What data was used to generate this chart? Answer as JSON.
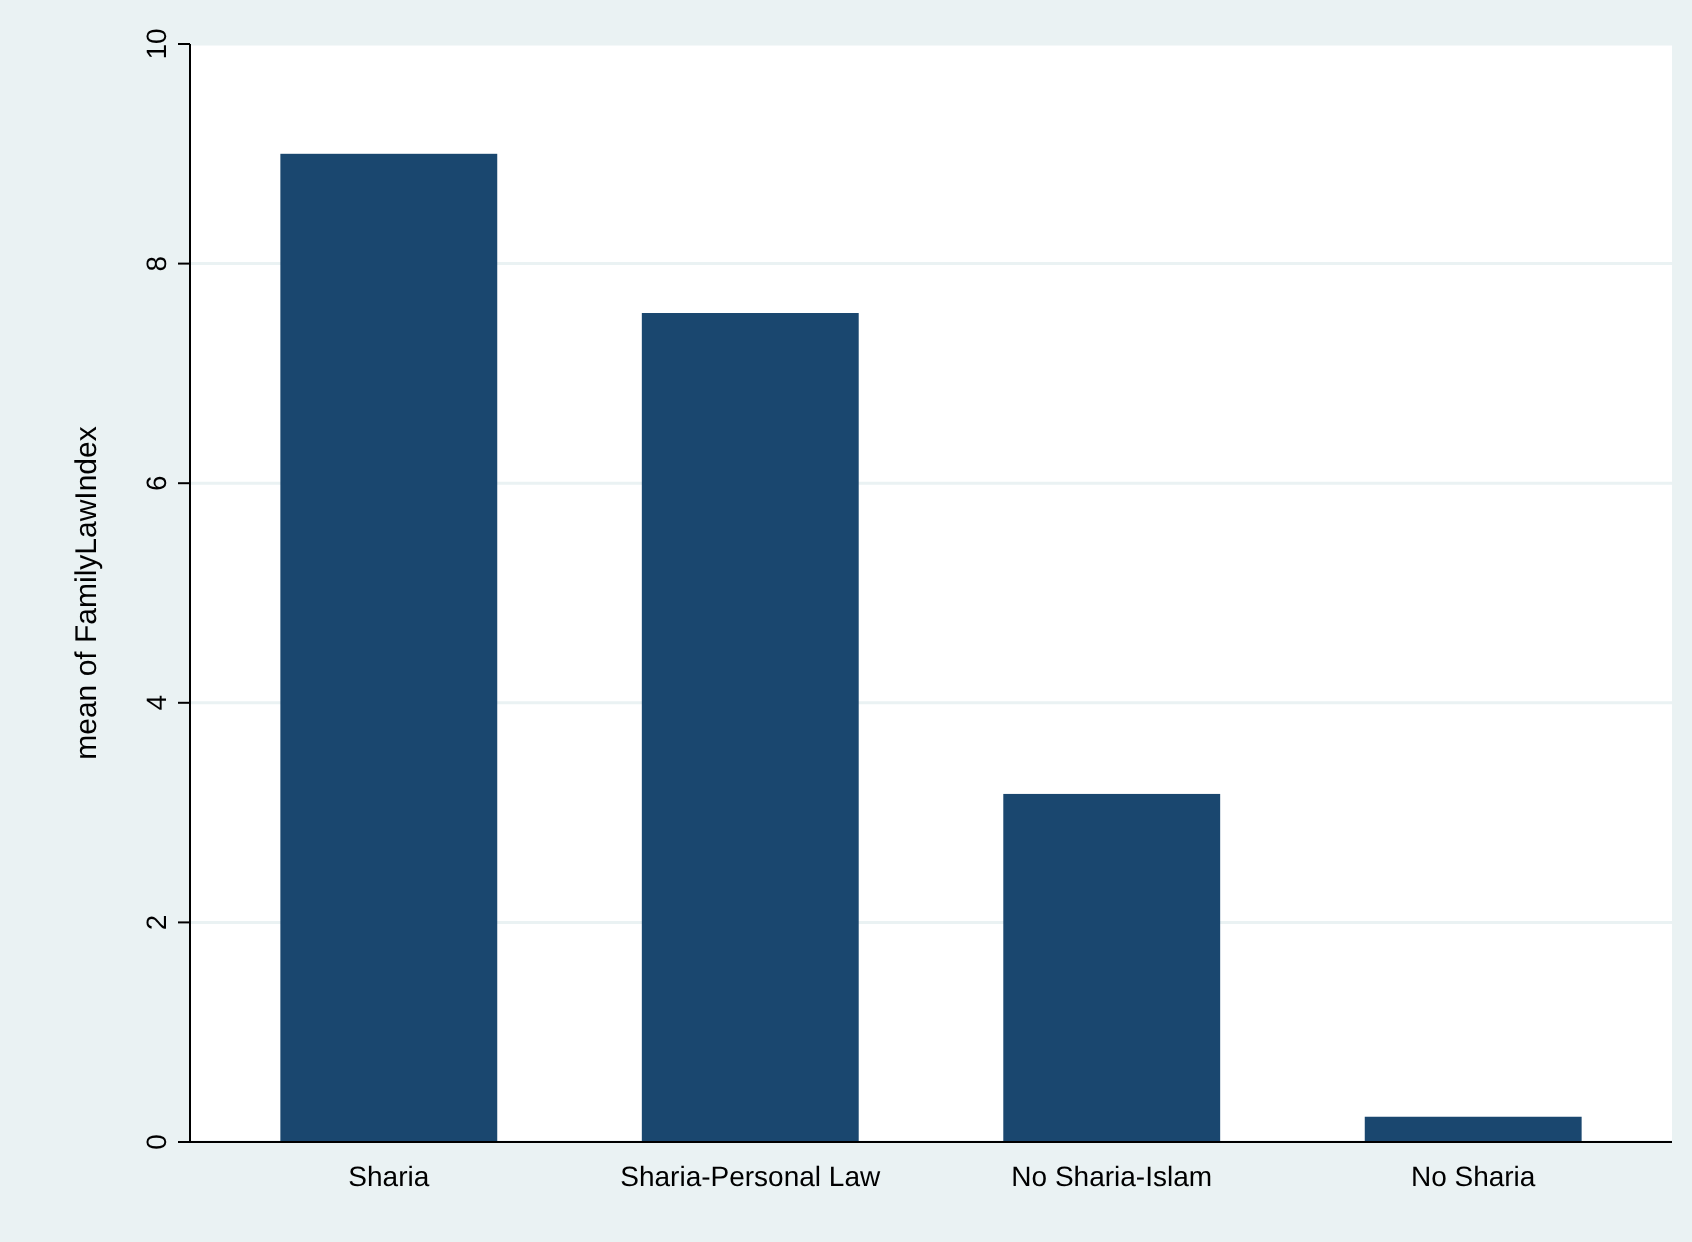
{
  "chart_data": {
    "type": "bar",
    "ylabel": "mean of FamilyLawIndex",
    "categories": [
      "Sharia",
      "Sharia-Personal Law",
      "No Sharia-Islam",
      "No Sharia"
    ],
    "values": [
      9.0,
      7.55,
      3.17,
      0.23
    ],
    "color": "#1a476f",
    "ylim": [
      0,
      10
    ],
    "yticks": [
      0,
      2,
      4,
      6,
      8,
      10
    ],
    "grid": "y"
  }
}
